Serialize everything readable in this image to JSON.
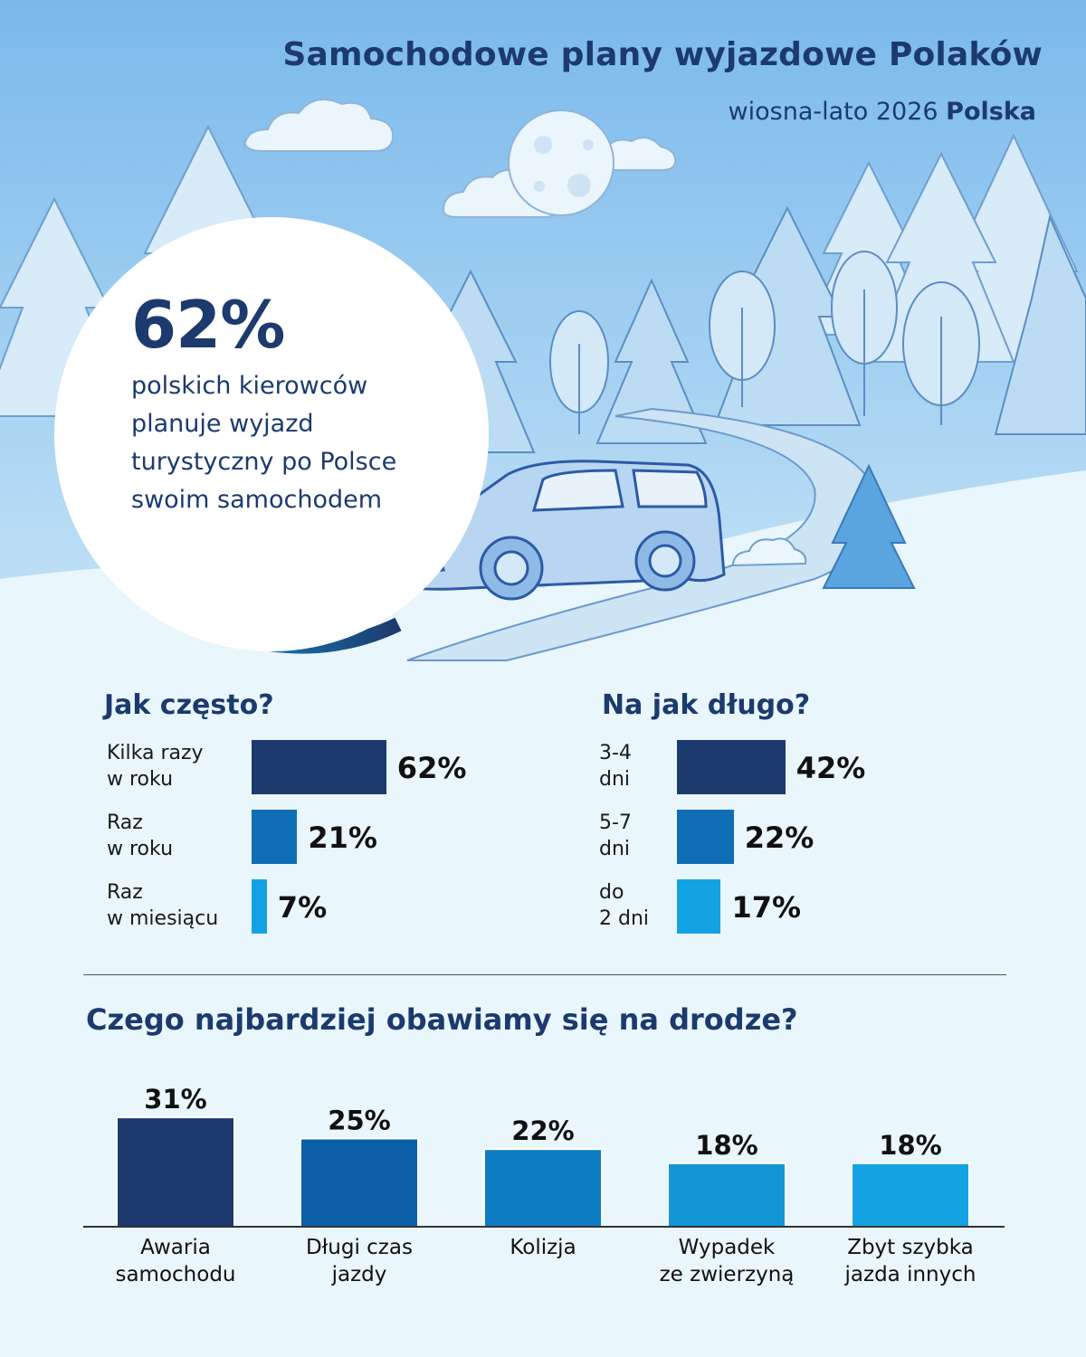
{
  "title": "Samochodowe plany wyjazdowe Polaków",
  "subtitle_prefix": "wiosna-lato 2026",
  "subtitle_bold": "Polska",
  "highlight": {
    "value": "62%",
    "description_lines": [
      "polskich kierowców",
      "planuje wyjazd",
      "turystyczny po Polsce",
      "swoim samochodem"
    ]
  },
  "colors": {
    "navy": "#1c3a6e",
    "mid_blue": "#0e6db4",
    "bright_blue": "#14a3e2",
    "sky": "#8ec8ef",
    "snow": "#e9f6fb"
  },
  "chart_data": [
    {
      "type": "bar",
      "orientation": "horizontal",
      "title": "Jak często?",
      "categories": [
        "Kilka razy w roku",
        "Raz w roku",
        "Raz w miesiącu"
      ],
      "category_lines": [
        [
          "Kilka razy",
          "w roku"
        ],
        [
          "Raz",
          "w roku"
        ],
        [
          "Raz",
          "w miesiącu"
        ]
      ],
      "values": [
        62,
        21,
        7
      ],
      "value_labels": [
        "62%",
        "21%",
        "7%"
      ],
      "colors": [
        "#1c3a6e",
        "#0e6db4",
        "#14a3e2"
      ]
    },
    {
      "type": "bar",
      "orientation": "horizontal",
      "title": "Na jak długo?",
      "categories": [
        "3-4 dni",
        "5-7 dni",
        "do 2 dni"
      ],
      "category_lines": [
        [
          "3-4",
          "dni"
        ],
        [
          "5-7",
          "dni"
        ],
        [
          "do",
          "2 dni"
        ]
      ],
      "values": [
        42,
        22,
        17
      ],
      "value_labels": [
        "42%",
        "22%",
        "17%"
      ],
      "colors": [
        "#1c3a6e",
        "#0e6db4",
        "#14a3e2"
      ]
    },
    {
      "type": "bar",
      "orientation": "vertical",
      "title": "Czego najbardziej obawiamy się na drodze?",
      "categories": [
        "Awaria samochodu",
        "Długi czas jazdy",
        "Kolizja",
        "Wypadek ze zwierzyną",
        "Zbyt szybka jazda innych"
      ],
      "category_lines": [
        [
          "Awaria",
          "samochodu"
        ],
        [
          "Długi czas",
          "jazdy"
        ],
        [
          "Kolizja"
        ],
        [
          "Wypadek",
          "ze zwierzyną"
        ],
        [
          "Zbyt szybka",
          "jazda innych"
        ]
      ],
      "values": [
        31,
        25,
        22,
        18,
        18
      ],
      "value_labels": [
        "31%",
        "25%",
        "22%",
        "18%",
        "18%"
      ],
      "colors": [
        "#1c3a6e",
        "#0a5ea8",
        "#0e7cc4",
        "#1496d6",
        "#14a3e2"
      ]
    }
  ]
}
